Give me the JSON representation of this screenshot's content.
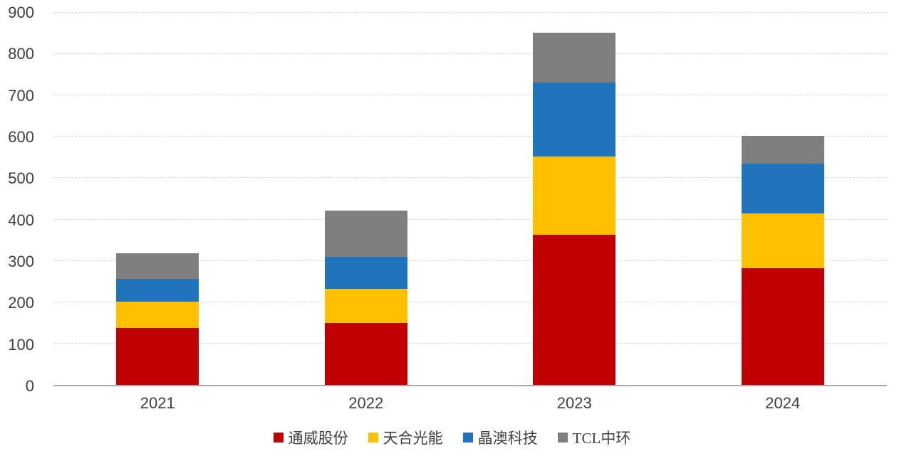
{
  "chart_data": {
    "type": "bar",
    "stacked": true,
    "title": "",
    "xlabel": "",
    "ylabel": "",
    "categories": [
      "2021",
      "2022",
      "2023",
      "2024"
    ],
    "series": [
      {
        "name": "通威股份",
        "color": "#C00000",
        "values": [
          137,
          150,
          363,
          282
        ]
      },
      {
        "name": "天合光能",
        "color": "#FFC000",
        "values": [
          65,
          82,
          190,
          133
        ]
      },
      {
        "name": "晶澳科技",
        "color": "#2074BC",
        "values": [
          55,
          78,
          179,
          120
        ]
      },
      {
        "name": "TCL中环",
        "color": "#7F7F7F",
        "values": [
          62,
          112,
          120,
          68
        ]
      }
    ],
    "stack_totals": [
      319,
      422,
      852,
      603
    ],
    "ylim": [
      0,
      900
    ],
    "yticks": [
      0,
      100,
      200,
      300,
      400,
      500,
      600,
      700,
      800,
      900
    ],
    "grid": "horizontal-dashed",
    "legend_position": "bottom",
    "colors": {
      "gridline": "#D9D9D9",
      "axis_line": "#ACACAC",
      "tick_text": "#404040"
    }
  }
}
